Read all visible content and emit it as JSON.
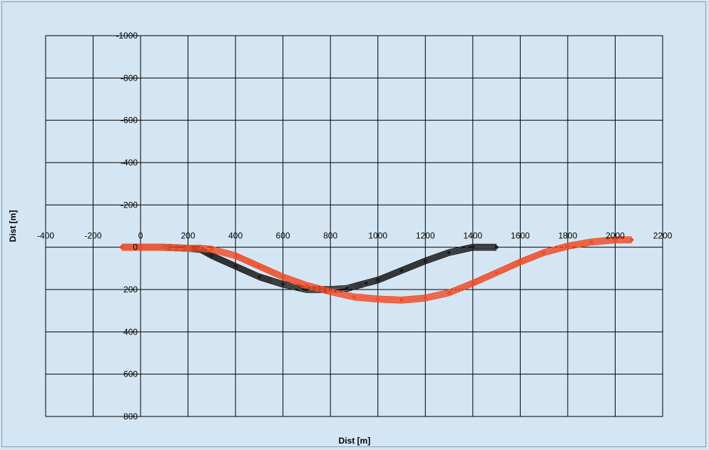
{
  "chart_data": {
    "type": "scatter",
    "title": "",
    "xlabel": "Dist [m]",
    "ylabel": "Dist [m]",
    "xlim": [
      -400,
      2200
    ],
    "ylim": [
      800,
      -1000
    ],
    "x_ticks": [
      -400,
      -200,
      0,
      200,
      400,
      600,
      800,
      1000,
      1200,
      1400,
      1600,
      1800,
      2000,
      2200
    ],
    "y_ticks": [
      -1000,
      -800,
      -600,
      -400,
      -200,
      0,
      200,
      400,
      600,
      800
    ],
    "x_tick_labels": [
      "-400",
      "-200",
      "0",
      "200",
      "400",
      "600",
      "800",
      "1000",
      "1200",
      "1400",
      "1600",
      "1800",
      "2000",
      "2200"
    ],
    "y_tick_labels": [
      "-1000",
      "-800",
      "-600",
      "-400",
      "-200",
      "0",
      "200",
      "400",
      "600",
      "800"
    ],
    "grid": true,
    "colors": {
      "background": "#d4e6f3",
      "plot_background": "#d4e6f3",
      "grid": "#000000",
      "series_black": "#1a1a1a",
      "series_red": "#f04a25"
    },
    "series": [
      {
        "color": "#1a1a1a",
        "x": [
          -80,
          0,
          100,
          200,
          250,
          300,
          400,
          500,
          600,
          700,
          800,
          870,
          950,
          1000,
          1100,
          1200,
          1300,
          1400,
          1500
        ],
        "y": [
          0,
          0,
          0,
          5,
          10,
          40,
          90,
          140,
          175,
          200,
          200,
          195,
          170,
          155,
          110,
          65,
          25,
          0,
          0
        ]
      },
      {
        "color": "#f04a25",
        "x": [
          -80,
          0,
          100,
          200,
          250,
          300,
          400,
          500,
          600,
          700,
          800,
          900,
          1000,
          1100,
          1200,
          1300,
          1400,
          1500,
          1600,
          1700,
          1800,
          1900,
          2000,
          2070
        ],
        "y": [
          0,
          0,
          0,
          5,
          5,
          10,
          40,
          90,
          140,
          180,
          210,
          235,
          245,
          250,
          240,
          215,
          170,
          120,
          70,
          25,
          -5,
          -25,
          -35,
          -35
        ]
      }
    ]
  }
}
